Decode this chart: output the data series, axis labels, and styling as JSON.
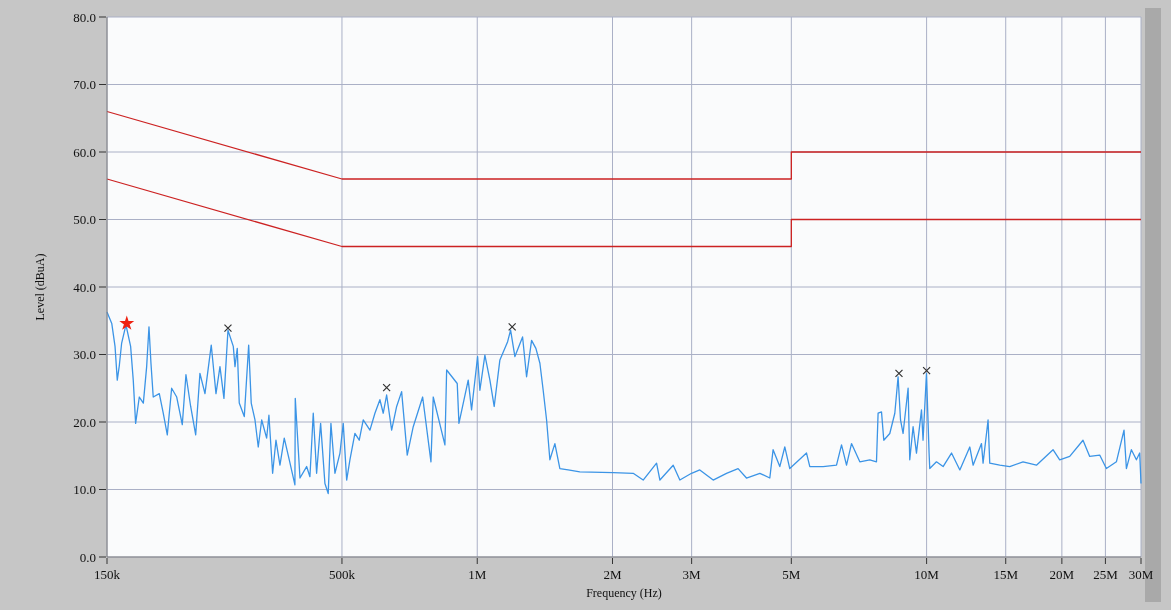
{
  "chart_data": {
    "type": "line",
    "xlabel": "Frequency (Hz)",
    "ylabel": "Level (dBuA)",
    "log": "x",
    "grid": true,
    "xlim": [
      150000,
      30000000
    ],
    "ylim": [
      0,
      80
    ],
    "xticks": [
      {
        "value": 150000,
        "label": "150k"
      },
      {
        "value": 500000,
        "label": "500k"
      },
      {
        "value": 1000000,
        "label": "1M"
      },
      {
        "value": 2000000,
        "label": "2M"
      },
      {
        "value": 3000000,
        "label": "3M"
      },
      {
        "value": 5000000,
        "label": "5M"
      },
      {
        "value": 10000000,
        "label": "10M"
      },
      {
        "value": 15000000,
        "label": "15M"
      },
      {
        "value": 20000000,
        "label": "20M"
      },
      {
        "value": 25000000,
        "label": "25M"
      },
      {
        "value": 30000000,
        "label": "30M"
      }
    ],
    "yticks": [
      {
        "value": 0,
        "label": "0.0"
      },
      {
        "value": 10,
        "label": "10.0"
      },
      {
        "value": 20,
        "label": "20.0"
      },
      {
        "value": 30,
        "label": "30.0"
      },
      {
        "value": 40,
        "label": "40.0"
      },
      {
        "value": 50,
        "label": "50.0"
      },
      {
        "value": 60,
        "label": "60.0"
      },
      {
        "value": 70,
        "label": "70.0"
      },
      {
        "value": 80,
        "label": "80.0"
      }
    ],
    "series": [
      {
        "color": "#3b94e6",
        "x": [
          150000,
          153700,
          156300,
          158100,
          159800,
          161700,
          165300,
          169300,
          171600,
          173700,
          177000,
          180700,
          183800,
          186000,
          187900,
          190100,
          196100,
          200100,
          204300,
          208900,
          214400,
          220600,
          224800,
          230300,
          236300,
          241500,
          247800,
          255900,
          262200,
          267600,
          273100,
          278800,
          286500,
          289000,
          292400,
          295400,
          303100,
          310000,
          314100,
          320200,
          325600,
          331400,
          339900,
          343900,
          350500,
          356500,
          363900,
          372000,
          381700,
          392900,
          393600,
          403200,
          417200,
          424300,
          431600,
          439100,
          448200,
          458200,
          466000,
          472500,
          482300,
          494900,
          503300,
          512200,
          520800,
          534300,
          546300,
          557600,
          577100,
          592000,
          607300,
          617800,
          628600,
          645000,
          661700,
          678800,
          698600,
          720400,
          756000,
          788900,
          798200,
          847400,
          854900,
          902600,
          910500,
          954800,
          971400,
          1001900,
          1013700,
          1040000,
          1067100,
          1090700,
          1123100,
          1168500,
          1186400,
          1212900,
          1261600,
          1287700,
          1321100,
          1350600,
          1378600,
          1402000,
          1426700,
          1450900,
          1488600,
          1527200,
          1593600,
          1691800,
          2007000,
          2223600,
          2340200,
          2506500,
          2549700,
          2729600,
          2824200,
          2998300,
          3128400,
          3350100,
          3586500,
          3806100,
          3973500,
          4255500,
          4478100,
          4554300,
          4713300,
          4835300,
          4960200,
          5404800,
          5496600,
          5884500,
          6302400,
          6466800,
          6634400,
          6806300,
          7102200,
          7474500,
          7735200,
          7799400,
          7937000,
          8030700,
          8281000,
          8496900,
          8640900,
          8748900,
          8864400,
          9095500,
          9173400,
          9331200,
          9494000,
          9742000,
          9819600,
          9993600,
          10128000,
          10163000,
          10518000,
          10882000,
          11362000,
          11857000,
          12477000,
          12691000,
          13247000,
          13356000,
          13702000,
          13821000,
          14548000,
          15311000,
          16390000,
          17557000,
          19113000,
          19779000,
          20821000,
          22288000,
          23067000,
          24278000,
          25124000,
          26446000,
          27499000,
          27837000,
          28557000,
          29301000,
          29799000,
          30000000
        ],
        "values": [
          36.3,
          34.6,
          31.2,
          26.2,
          28.4,
          31.7,
          34.4,
          31.2,
          26.2,
          19.8,
          23.7,
          22.8,
          28.2,
          34.1,
          28.7,
          23.7,
          24.2,
          21.3,
          18.1,
          25.0,
          23.7,
          19.6,
          27.0,
          22.3,
          18.1,
          27.2,
          24.2,
          31.4,
          24.2,
          28.2,
          23.5,
          33.6,
          31.2,
          28.2,
          30.9,
          22.8,
          20.8,
          31.4,
          22.8,
          20.3,
          16.3,
          20.3,
          17.6,
          21.0,
          12.4,
          17.3,
          13.6,
          17.6,
          14.4,
          10.7,
          23.5,
          11.7,
          13.4,
          11.9,
          21.3,
          12.4,
          19.8,
          10.9,
          9.4,
          19.8,
          12.4,
          15.4,
          19.8,
          11.4,
          14.4,
          18.3,
          17.3,
          20.3,
          18.8,
          21.3,
          23.3,
          21.3,
          24.0,
          18.8,
          22.3,
          24.5,
          15.1,
          19.3,
          23.7,
          14.1,
          23.7,
          16.6,
          27.7,
          25.7,
          19.8,
          26.2,
          21.8,
          29.7,
          24.7,
          29.9,
          26.2,
          22.3,
          29.2,
          31.9,
          33.6,
          29.7,
          32.6,
          26.7,
          32.1,
          30.9,
          28.7,
          24.7,
          20.3,
          14.4,
          16.8,
          13.1,
          12.9,
          12.6,
          12.5,
          12.4,
          11.4,
          13.9,
          11.4,
          13.6,
          11.4,
          12.4,
          12.9,
          11.4,
          12.4,
          13.1,
          11.7,
          12.4,
          11.7,
          15.9,
          13.4,
          16.3,
          13.1,
          15.4,
          13.4,
          13.4,
          13.6,
          16.6,
          13.6,
          16.8,
          14.1,
          14.4,
          14.1,
          21.3,
          21.5,
          17.3,
          18.3,
          21.3,
          26.7,
          20.3,
          18.3,
          25.0,
          14.4,
          19.3,
          15.4,
          21.8,
          17.3,
          27.2,
          15.4,
          13.1,
          14.1,
          13.4,
          15.4,
          12.9,
          16.3,
          13.6,
          16.8,
          13.9,
          20.3,
          13.9,
          13.6,
          13.4,
          14.1,
          13.6,
          15.9,
          14.4,
          14.9,
          17.3,
          14.9,
          15.1,
          13.1,
          14.1,
          18.8,
          13.1,
          15.9,
          14.4,
          15.4,
          10.9
        ]
      },
      {
        "color": "#cc2222",
        "x": [
          150000,
          500000,
          5000000,
          5000000,
          30000000
        ],
        "values": [
          66,
          56,
          56,
          60,
          60
        ]
      },
      {
        "color": "#cc2222",
        "x": [
          150000,
          500000,
          5000000,
          5000000,
          30000000
        ],
        "values": [
          56,
          46,
          46,
          50,
          50
        ]
      },
      {
        "type": "scatter",
        "marker": "cross",
        "color": "#333333",
        "x": [
          278800,
          628600,
          1196000,
          8680000,
          10000000
        ],
        "values": [
          33.9,
          25.1,
          34.1,
          27.2,
          27.6
        ]
      },
      {
        "type": "scatter",
        "marker": "star",
        "color": "#ee2211",
        "x": [
          166000
        ],
        "values": [
          34.6
        ]
      }
    ]
  }
}
